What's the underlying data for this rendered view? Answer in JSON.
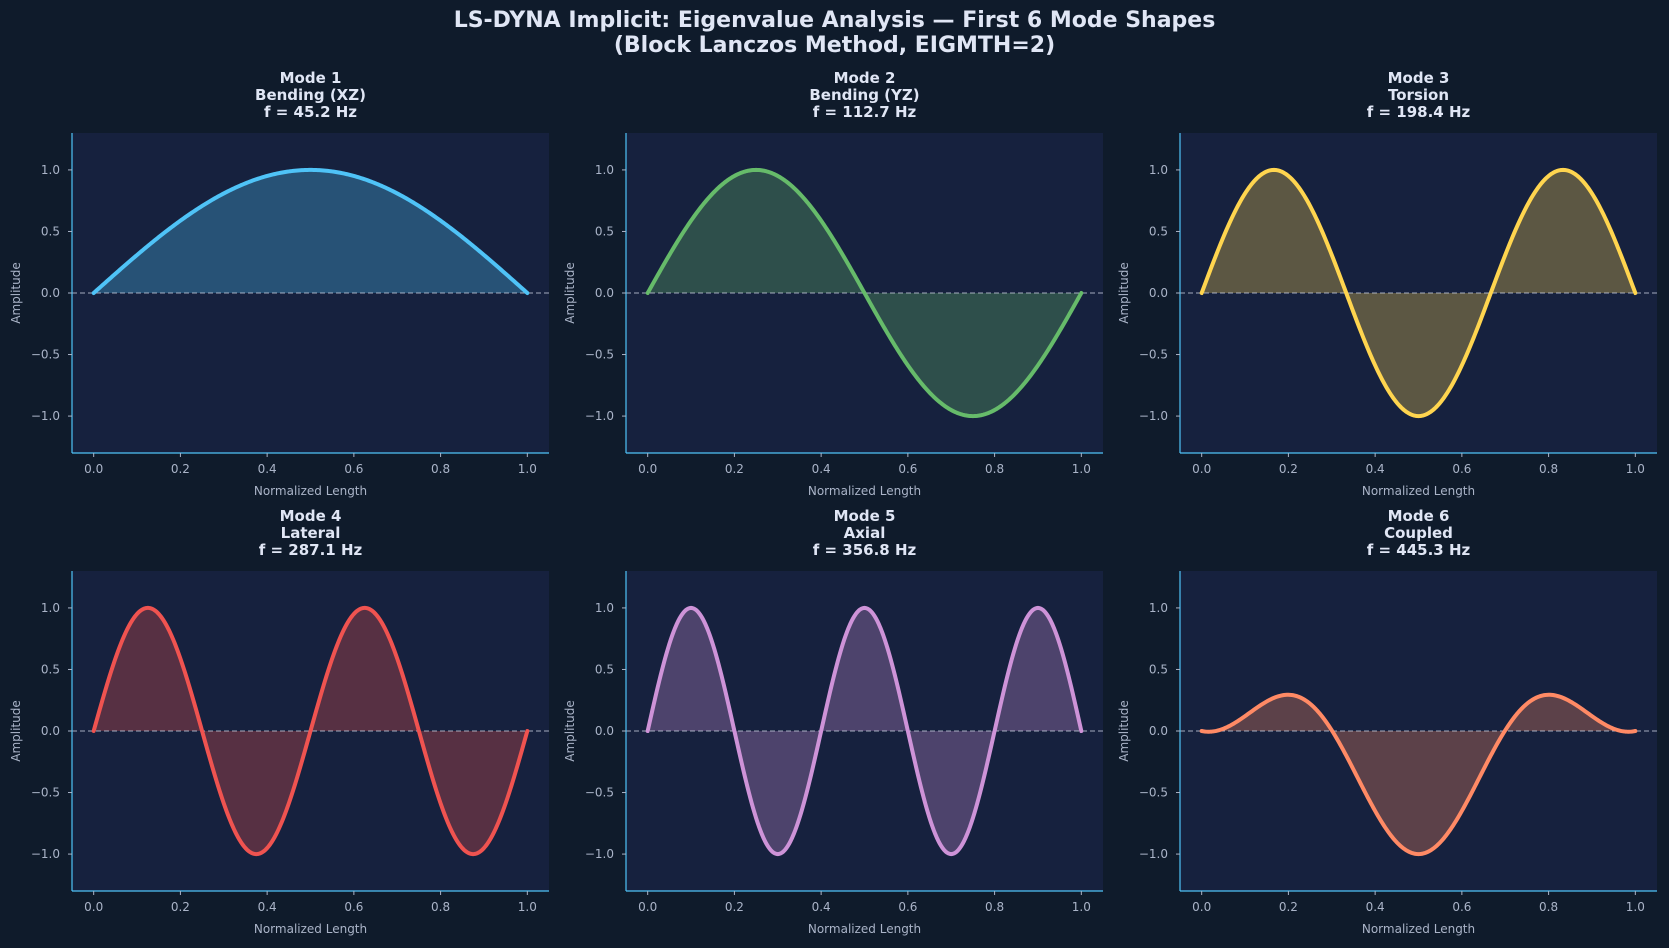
{
  "figure": {
    "title_line1": "LS-DYNA Implicit: Eigenvalue Analysis — First 6 Mode Shapes",
    "title_line2": "(Block Lanczos Method, EIGMTH=2)",
    "background": "#0f1b2b",
    "axes_background": "#16213e",
    "spine_color": "#4fc3f7"
  },
  "chart_data": [
    {
      "type": "area",
      "title_lines": [
        "Mode 1",
        "Bending (XZ)",
        "f = 45.2 Hz"
      ],
      "mode": 1,
      "shape": "Bending (XZ)",
      "frequency_hz": 45.2,
      "function": "sin(pi*x)",
      "x_range": [
        0,
        1
      ],
      "xlim": [
        -0.05,
        1.05
      ],
      "ylim": [
        -1.3,
        1.3
      ],
      "xticks": [
        0.0,
        0.2,
        0.4,
        0.6,
        0.8,
        1.0
      ],
      "yticks": [
        -1.0,
        -0.5,
        0.0,
        0.5,
        1.0
      ],
      "xlabel": "Normalized Length",
      "ylabel": "Amplitude",
      "color": "#4fc3f7",
      "fill": true,
      "zero_line": true
    },
    {
      "type": "area",
      "title_lines": [
        "Mode 2",
        "Bending (YZ)",
        "f = 112.7 Hz"
      ],
      "mode": 2,
      "shape": "Bending (YZ)",
      "frequency_hz": 112.7,
      "function": "sin(2*pi*x)",
      "x_range": [
        0,
        1
      ],
      "xlim": [
        -0.05,
        1.05
      ],
      "ylim": [
        -1.3,
        1.3
      ],
      "xticks": [
        0.0,
        0.2,
        0.4,
        0.6,
        0.8,
        1.0
      ],
      "yticks": [
        -1.0,
        -0.5,
        0.0,
        0.5,
        1.0
      ],
      "xlabel": "Normalized Length",
      "ylabel": "Amplitude",
      "color": "#66bb6a",
      "fill": true,
      "zero_line": true
    },
    {
      "type": "area",
      "title_lines": [
        "Mode 3",
        "Torsion",
        "f = 198.4 Hz"
      ],
      "mode": 3,
      "shape": "Torsion",
      "frequency_hz": 198.4,
      "function": "sin(3*pi*x)",
      "x_range": [
        0,
        1
      ],
      "xlim": [
        -0.05,
        1.05
      ],
      "ylim": [
        -1.3,
        1.3
      ],
      "xticks": [
        0.0,
        0.2,
        0.4,
        0.6,
        0.8,
        1.0
      ],
      "yticks": [
        -1.0,
        -0.5,
        0.0,
        0.5,
        1.0
      ],
      "xlabel": "Normalized Length",
      "ylabel": "Amplitude",
      "color": "#ffd54f",
      "fill": true,
      "zero_line": true
    },
    {
      "type": "area",
      "title_lines": [
        "Mode 4",
        "Lateral",
        "f = 287.1 Hz"
      ],
      "mode": 4,
      "shape": "Lateral",
      "frequency_hz": 287.1,
      "function": "sin(4*pi*x)",
      "x_range": [
        0,
        1
      ],
      "xlim": [
        -0.05,
        1.05
      ],
      "ylim": [
        -1.3,
        1.3
      ],
      "xticks": [
        0.0,
        0.2,
        0.4,
        0.6,
        0.8,
        1.0
      ],
      "yticks": [
        -1.0,
        -0.5,
        0.0,
        0.5,
        1.0
      ],
      "xlabel": "Normalized Length",
      "ylabel": "Amplitude",
      "color": "#ef5350",
      "fill": true,
      "zero_line": true
    },
    {
      "type": "area",
      "title_lines": [
        "Mode 5",
        "Axial",
        "f = 356.8 Hz"
      ],
      "mode": 5,
      "shape": "Axial",
      "frequency_hz": 356.8,
      "function": "sin(5*pi*x)",
      "x_range": [
        0,
        1
      ],
      "xlim": [
        -0.05,
        1.05
      ],
      "ylim": [
        -1.3,
        1.3
      ],
      "xticks": [
        0.0,
        0.2,
        0.4,
        0.6,
        0.8,
        1.0
      ],
      "yticks": [
        -1.0,
        -0.5,
        0.0,
        0.5,
        1.0
      ],
      "xlabel": "Normalized Length",
      "ylabel": "Amplitude",
      "color": "#ce93d8",
      "fill": true,
      "zero_line": true
    },
    {
      "type": "area",
      "title_lines": [
        "Mode 6",
        "Coupled",
        "f = 445.3 Hz"
      ],
      "mode": 6,
      "shape": "Coupled",
      "frequency_hz": 445.3,
      "function": "sin(3*pi*x)*sin(pi*x) - 0.3*sin(pi*x), normalized",
      "x_range": [
        0,
        1
      ],
      "xlim": [
        -0.05,
        1.05
      ],
      "ylim": [
        -1.3,
        1.3
      ],
      "xticks": [
        0.0,
        0.2,
        0.4,
        0.6,
        0.8,
        1.0
      ],
      "yticks": [
        -1.0,
        -0.5,
        0.0,
        0.5,
        1.0
      ],
      "xlabel": "Normalized Length",
      "ylabel": "Amplitude",
      "color": "#ff8a65",
      "fill": true,
      "zero_line": true
    }
  ]
}
